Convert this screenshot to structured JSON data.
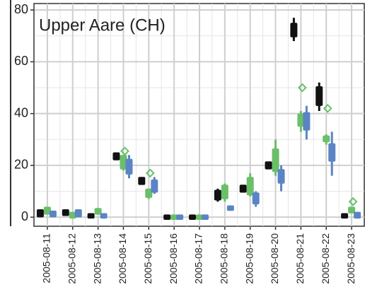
{
  "chart_data": {
    "type": "boxplot",
    "title": "Upper Aare (CH)",
    "categories": [
      "2005-08-11",
      "2005-08-12",
      "2005-08-13",
      "2005-08-14",
      "2005-08-15",
      "2005-08-16",
      "2005-08-17",
      "2005-08-18",
      "2005-08-19",
      "2005-08-20",
      "2005-08-21",
      "2005-08-22",
      "2005-08-23"
    ],
    "ylim": [
      -3.5,
      82.5
    ],
    "yticks": [
      0,
      20,
      40,
      60,
      80
    ],
    "minor_yticks": [
      10,
      30,
      50,
      70
    ],
    "grid": true,
    "series": [
      {
        "color": "#111111",
        "low": [
          0,
          1,
          0,
          22,
          13,
          -0.5,
          -0.5,
          6,
          10,
          19,
          68,
          41,
          0
        ],
        "q1": [
          0.5,
          1,
          0,
          22.5,
          13,
          -0.5,
          -0.5,
          7,
          10,
          19,
          70,
          43.5,
          0
        ],
        "q3": [
          2.5,
          2.5,
          1,
          24.5,
          15,
          0.5,
          0.5,
          10,
          12,
          21,
          74.5,
          50,
          1
        ],
        "high": [
          3,
          3,
          1,
          25,
          15,
          0.5,
          0.5,
          11,
          12,
          21,
          77,
          52,
          1
        ]
      },
      {
        "color": "#6abf69",
        "low": [
          1,
          0,
          1,
          18,
          7,
          -0.5,
          -0.5,
          6,
          8,
          16,
          33,
          28,
          2
        ],
        "q1": [
          1.5,
          0,
          1.5,
          19,
          8,
          -0.5,
          -0.5,
          7.5,
          9,
          18,
          35.5,
          29.5,
          2
        ],
        "q3": [
          3.5,
          1.5,
          3,
          23.5,
          10.5,
          0.5,
          0.5,
          12,
          15,
          26,
          39.5,
          31,
          3.5
        ],
        "high": [
          4,
          2,
          3.5,
          24,
          11,
          0.5,
          0.5,
          13,
          17,
          30,
          41,
          32,
          4
        ]
      },
      {
        "color": "#5b84c4",
        "low": [
          0,
          0,
          0,
          15,
          9,
          -0.5,
          -0.5,
          3,
          4,
          10,
          30,
          16,
          0
        ],
        "q1": [
          0.5,
          0.5,
          0,
          17,
          10,
          -0.5,
          -0.5,
          3,
          5.5,
          13.5,
          34,
          22,
          0
        ],
        "q3": [
          2,
          2.5,
          1,
          22,
          14,
          0.5,
          0.5,
          4,
          9,
          18,
          40,
          28,
          1.5
        ],
        "high": [
          2.5,
          3,
          1,
          24,
          15.5,
          0.5,
          0.5,
          4,
          10,
          20,
          43,
          33,
          2
        ]
      }
    ],
    "points": {
      "color": "#6abf69",
      "values": [
        null,
        null,
        null,
        25.5,
        17,
        null,
        null,
        null,
        null,
        null,
        50,
        42,
        6
      ]
    }
  }
}
